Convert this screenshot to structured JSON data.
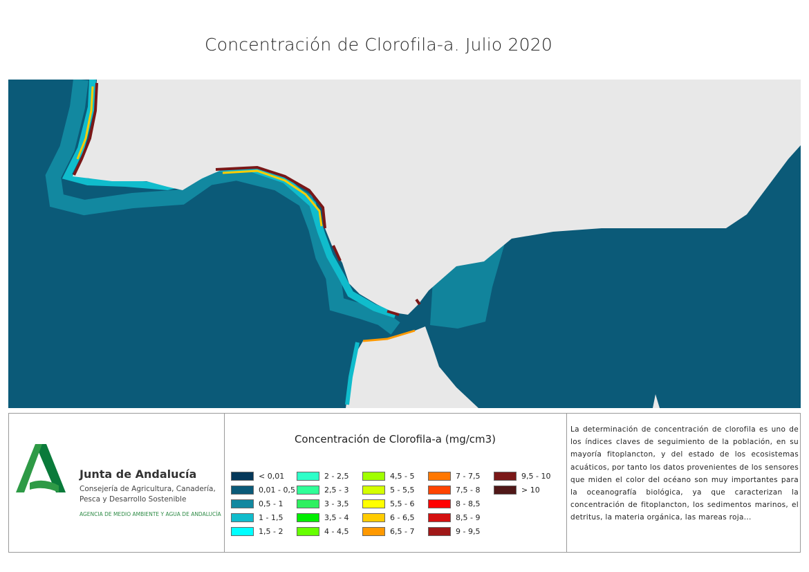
{
  "title": "Concentración de Clorofila-a. Julio 2020",
  "colors": {
    "ocean": "#0b5a78",
    "land": "#e8e8e8",
    "logo_green": "#2e8b46"
  },
  "logo": {
    "name": "Junta de Andalucía",
    "department": "Consejería de Agricultura, Canadería, Pesca y Desarrollo Sostenible",
    "agency": "AGENCIA DE MEDIO AMBIENTE Y AGUA DE ANDALUCÍA"
  },
  "legend": {
    "title": "Concentración de Clorofila-a (mg/cm3)",
    "items": [
      {
        "label": "< 0,01",
        "color": "#05385a"
      },
      {
        "label": "0,01 - 0,5",
        "color": "#0b5a78"
      },
      {
        "label": "0,5 - 1",
        "color": "#1288a0"
      },
      {
        "label": "1 - 1,5",
        "color": "#10bccc"
      },
      {
        "label": "1,5 - 2",
        "color": "#00ffff"
      },
      {
        "label": "2 - 2,5",
        "color": "#2effc8"
      },
      {
        "label": "2,5 - 3",
        "color": "#30ff98"
      },
      {
        "label": "3 - 3,5",
        "color": "#2ef060"
      },
      {
        "label": "3,5 - 4",
        "color": "#00ee00"
      },
      {
        "label": "4 - 4,5",
        "color": "#66ff00"
      },
      {
        "label": "4,5 - 5",
        "color": "#a0ff00"
      },
      {
        "label": "5 - 5,5",
        "color": "#d4ff00"
      },
      {
        "label": "5,5 - 6",
        "color": "#ffff00"
      },
      {
        "label": "6 - 6,5",
        "color": "#ffcc00"
      },
      {
        "label": "6,5 - 7",
        "color": "#ff9900"
      },
      {
        "label": "7 - 7,5",
        "color": "#ff7700"
      },
      {
        "label": "7,5 - 8",
        "color": "#ff4400"
      },
      {
        "label": "8 - 8,5",
        "color": "#ff0000"
      },
      {
        "label": "8,5 - 9",
        "color": "#d41010"
      },
      {
        "label": "9 - 9,5",
        "color": "#a01818"
      },
      {
        "label": "9,5 - 10",
        "color": "#7a1818"
      },
      {
        "label": "> 10",
        "color": "#501818"
      }
    ]
  },
  "description": "La determinación de concentración de clorofila es uno de los índices claves de seguimiento de la población, en su mayoría fitoplancton, y del estado de los ecosistemas acuáticos, por tanto los datos provenientes de los sensores que miden el color del océano son muy importantes para la oceanografía biológica, ya que caracterizan la concentración de fitoplancton, los sedimentos marinos, el detritus, la materia orgánica, las mareas roja..."
}
